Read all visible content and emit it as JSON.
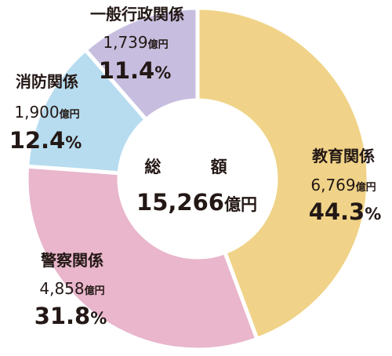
{
  "chart_data": {
    "type": "pie",
    "center": {
      "title": "総 額",
      "total_value": "15,266",
      "unit": "億円"
    },
    "unit": "億円",
    "slices": [
      {
        "label": "教育関係",
        "value": 6769,
        "value_text": "6,769",
        "percent": 44.3,
        "percent_text": "44.3",
        "color": "#f0d388"
      },
      {
        "label": "警察関係",
        "value": 4858,
        "value_text": "4,858",
        "percent": 31.8,
        "percent_text": "31.8",
        "color": "#e9b6cc"
      },
      {
        "label": "消防関係",
        "value": 1900,
        "value_text": "1,900",
        "percent": 12.4,
        "percent_text": "12.4",
        "color": "#b7dcef"
      },
      {
        "label": "一般行政関係",
        "value": 1739,
        "value_text": "1,739",
        "percent": 11.4,
        "percent_text": "11.4",
        "color": "#c7bedf"
      }
    ],
    "percent_sign": "%"
  }
}
